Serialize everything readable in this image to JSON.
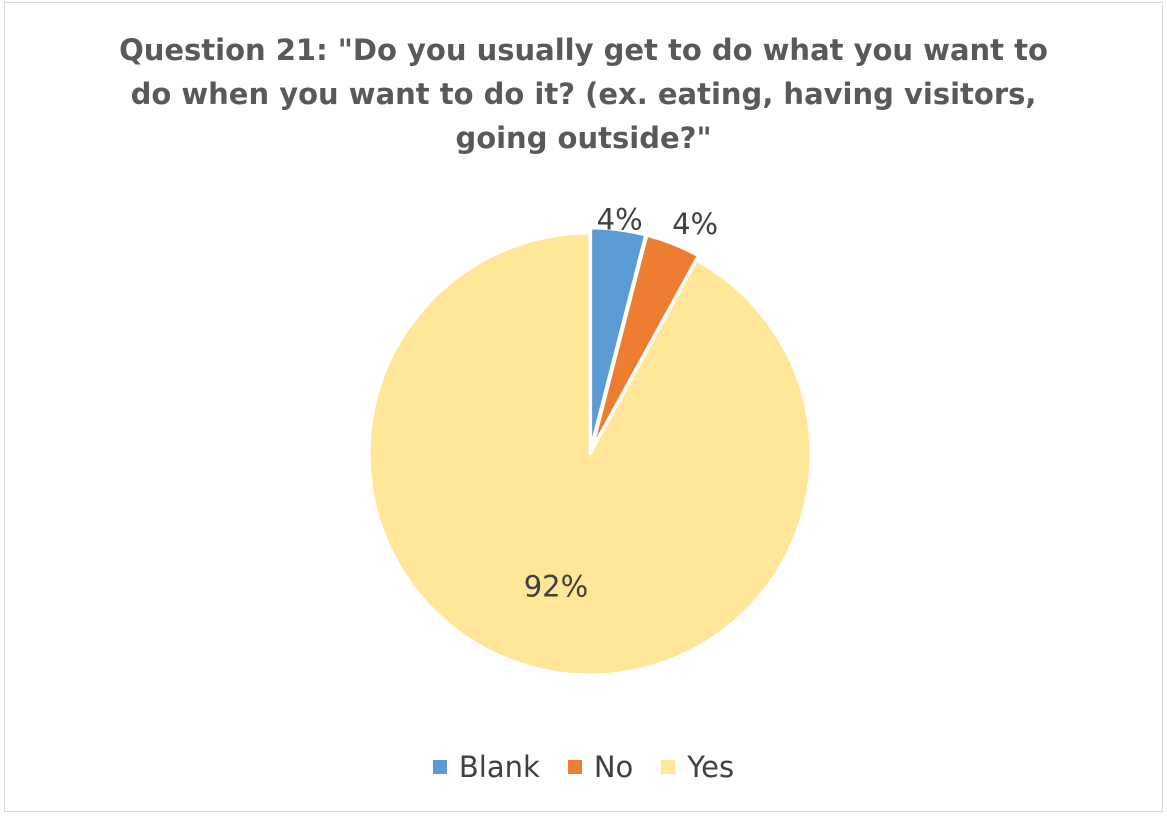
{
  "chart_data": {
    "type": "pie",
    "title_lines": [
      "Question 21: \"Do you usually get to do what you want to",
      "do when you want to do it? (ex. eating, having visitors,",
      "going outside?\""
    ],
    "slices": [
      {
        "name": "Blank",
        "value": 4,
        "label": "4%",
        "color": "#5b9bd5"
      },
      {
        "name": "No",
        "value": 4,
        "label": "4%",
        "color": "#ed7d31"
      },
      {
        "name": "Yes",
        "value": 92,
        "label": "92%",
        "color": "#ffe699"
      }
    ],
    "legend_position": "bottom"
  }
}
